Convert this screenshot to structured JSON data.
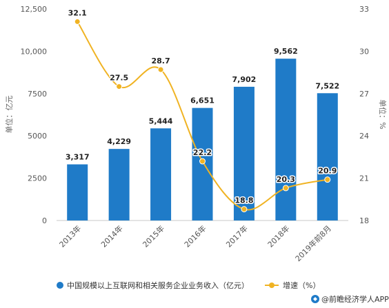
{
  "chart_data": {
    "type": "bar",
    "categories": [
      "2013年",
      "2014年",
      "2015年",
      "2016年",
      "2017年",
      "2018年",
      "2019年前8月"
    ],
    "series": [
      {
        "name": "中国规模以上互联网和相关服务企业业务收入（亿元）",
        "type": "bar",
        "axis": "left",
        "values": [
          3317,
          4229,
          5444,
          6651,
          7902,
          9562,
          7522
        ],
        "labels": [
          "3,317",
          "4,229",
          "5,444",
          "6,651",
          "7,902",
          "9,562",
          "7,522"
        ],
        "color": "#1f7bc8"
      },
      {
        "name": "增速（%）",
        "type": "line",
        "axis": "right",
        "values": [
          32.1,
          27.5,
          28.7,
          22.2,
          18.8,
          20.3,
          20.9
        ],
        "labels": [
          "32.1",
          "27.5",
          "28.7",
          "22.2",
          "18.8",
          "20.3",
          "20.9"
        ],
        "color": "#f0b323"
      }
    ],
    "ylabel": "单位：亿元",
    "y2label": "单位：%",
    "ylim": [
      0,
      12500
    ],
    "y2lim": [
      18,
      33
    ],
    "yticks": [
      0,
      2500,
      5000,
      7500,
      10000,
      12500
    ],
    "ytick_labels": [
      "0",
      "2500",
      "5000",
      "7500",
      "10,000",
      "12,500"
    ],
    "y2ticks": [
      18,
      21,
      24,
      27,
      30,
      33
    ],
    "y2tick_labels": [
      "18",
      "21",
      "24",
      "27",
      "30",
      "33"
    ],
    "grid": false,
    "legend": "bottom"
  },
  "source": {
    "label": "@前瞻经济学人APP",
    "icon": "source-logo-icon",
    "color": "#1f7bc8"
  }
}
